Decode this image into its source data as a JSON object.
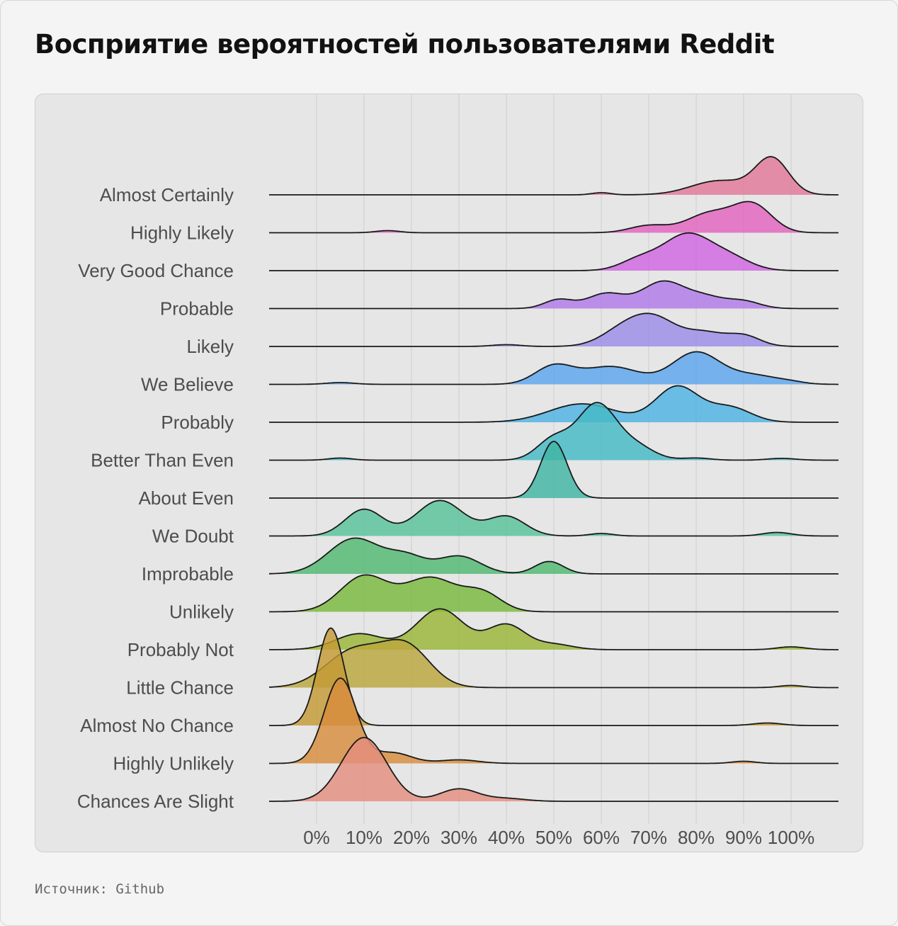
{
  "title": "Восприятие вероятностей пользователями Reddit",
  "source": "Источник: Github",
  "chart_data": {
    "type": "ridgeline",
    "title": "Восприятие вероятностей пользователями Reddit",
    "xlabel": "",
    "ylabel": "",
    "xlim": [
      -10,
      110
    ],
    "x_ticks": [
      0,
      10,
      20,
      30,
      40,
      50,
      60,
      70,
      80,
      90,
      100
    ],
    "x_tick_labels": [
      "0%",
      "10%",
      "20%",
      "30%",
      "40%",
      "50%",
      "60%",
      "70%",
      "80%",
      "90%",
      "100%"
    ],
    "grid": true,
    "series": [
      {
        "name": "Almost Certainly",
        "color": "#E27898",
        "peaks": [
          [
            60,
            0.06,
            2
          ],
          [
            85,
            0.4,
            6
          ],
          [
            96,
            1.0,
            3.5
          ]
        ]
      },
      {
        "name": "Highly Likely",
        "color": "#E263BF",
        "peaks": [
          [
            15,
            0.06,
            2.5
          ],
          [
            70,
            0.2,
            4
          ],
          [
            83,
            0.55,
            5
          ],
          [
            92,
            0.75,
            4
          ]
        ]
      },
      {
        "name": "Very Good Chance",
        "color": "#D065E0",
        "peaks": [
          [
            68,
            0.3,
            4
          ],
          [
            78,
            1.0,
            5
          ],
          [
            87,
            0.35,
            4.5
          ]
        ]
      },
      {
        "name": "Probable",
        "color": "#B07AE8",
        "peaks": [
          [
            51,
            0.25,
            3
          ],
          [
            61,
            0.42,
            4
          ],
          [
            73,
            0.75,
            4.5
          ],
          [
            82,
            0.3,
            4
          ],
          [
            90,
            0.2,
            3.5
          ]
        ]
      },
      {
        "name": "Likely",
        "color": "#9B8CE8",
        "peaks": [
          [
            40,
            0.05,
            3
          ],
          [
            64,
            0.35,
            4.5
          ],
          [
            71,
            0.8,
            5
          ],
          [
            82,
            0.35,
            4
          ],
          [
            90,
            0.3,
            3.5
          ]
        ]
      },
      {
        "name": "We Believe",
        "color": "#5AA5EE",
        "peaks": [
          [
            5,
            0.05,
            3
          ],
          [
            50,
            0.5,
            4
          ],
          [
            62,
            0.5,
            6
          ],
          [
            80,
            0.9,
            5
          ],
          [
            92,
            0.25,
            5
          ],
          [
            100,
            0.05,
            3
          ]
        ]
      },
      {
        "name": "Probably",
        "color": "#4DB2E2",
        "peaks": [
          [
            56,
            0.52,
            7
          ],
          [
            76,
            1.0,
            4.5
          ],
          [
            87,
            0.42,
            4.5
          ]
        ]
      },
      {
        "name": "Better Than Even",
        "color": "#44B9C6",
        "peaks": [
          [
            5,
            0.06,
            2.5
          ],
          [
            50,
            0.6,
            3.5
          ],
          [
            59,
            1.55,
            4
          ],
          [
            67,
            0.4,
            4
          ],
          [
            80,
            0.06,
            3
          ],
          [
            98,
            0.05,
            3
          ]
        ]
      },
      {
        "name": "About Even",
        "color": "#3FB4A4",
        "peaks": [
          [
            50,
            1.6,
            2.8
          ]
        ]
      },
      {
        "name": "We Doubt",
        "color": "#58C29A",
        "peaks": [
          [
            10,
            0.75,
            4
          ],
          [
            26,
            1.0,
            5
          ],
          [
            40,
            0.55,
            4
          ],
          [
            60,
            0.07,
            2.5
          ],
          [
            97,
            0.1,
            3
          ]
        ]
      },
      {
        "name": "Improbable",
        "color": "#4FB870",
        "peaks": [
          [
            8,
            1.0,
            5.5
          ],
          [
            19,
            0.45,
            4
          ],
          [
            30,
            0.5,
            4.5
          ],
          [
            49,
            0.35,
            3
          ]
        ]
      },
      {
        "name": "Unlikely",
        "color": "#78B83C",
        "peaks": [
          [
            10,
            1.0,
            5
          ],
          [
            24,
            0.95,
            5.5
          ],
          [
            35,
            0.5,
            4
          ]
        ]
      },
      {
        "name": "Probably Not",
        "color": "#98B636",
        "peaks": [
          [
            9,
            0.45,
            5
          ],
          [
            26,
            1.15,
            5
          ],
          [
            40,
            0.7,
            4
          ],
          [
            50,
            0.15,
            4
          ],
          [
            100,
            0.08,
            3
          ]
        ]
      },
      {
        "name": "Little Chance",
        "color": "#BBA63D",
        "peaks": [
          [
            8,
            1.05,
            6
          ],
          [
            19,
            1.1,
            5
          ],
          [
            100,
            0.06,
            2.5
          ]
        ]
      },
      {
        "name": "Almost No Chance",
        "color": "#C49A35",
        "peaks": [
          [
            3,
            2.75,
            2.8
          ],
          [
            95,
            0.07,
            3
          ]
        ]
      },
      {
        "name": "Highly Unlikely",
        "color": "#D78C3C",
        "peaks": [
          [
            5,
            2.4,
            3.4
          ],
          [
            16,
            0.3,
            4
          ],
          [
            30,
            0.1,
            4
          ],
          [
            90,
            0.06,
            2.5
          ]
        ]
      },
      {
        "name": "Chances Are Slight",
        "color": "#E48D7F",
        "peaks": [
          [
            10,
            1.8,
            4.8
          ],
          [
            30,
            0.35,
            4
          ],
          [
            40,
            0.08,
            4
          ]
        ]
      }
    ]
  }
}
